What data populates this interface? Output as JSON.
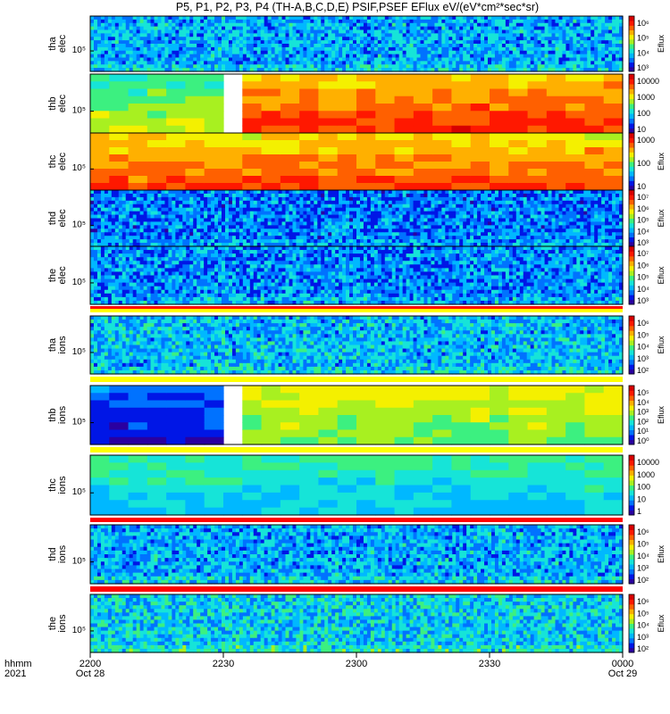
{
  "title": "P5, P1, P2, P3, P4 (TH-A,B,C,D,E) PSIF,PSEF EFlux eV/(eV*cm²*sec*sr)",
  "x_axis": {
    "row_labels": [
      "hhmm",
      "2021"
    ],
    "ticks": [
      {
        "time": "2200",
        "date": "Oct 28"
      },
      {
        "time": "2230",
        "date": ""
      },
      {
        "time": "2300",
        "date": ""
      },
      {
        "time": "2330",
        "date": ""
      },
      {
        "time": "0000",
        "date": "Oct 29"
      }
    ]
  },
  "colors": {
    "colormap": [
      "#2a00a0",
      "#0016e6",
      "#0072ff",
      "#00b8ff",
      "#16e4d8",
      "#3cf080",
      "#a8f020",
      "#f4f000",
      "#ffb000",
      "#ff6000",
      "#ff1800",
      "#d80000"
    ],
    "separator_yellow": "#ffff00",
    "separator_red": "#ff0000"
  },
  "chart_data": [
    {
      "type": "heatmap",
      "probe": "tha",
      "species": "elec",
      "ylabel": [
        "tha",
        "elec"
      ],
      "y_tick": "10⁵",
      "colorbar_label": "Eflux",
      "colorbar_ticks": [
        "10⁶",
        "10⁵",
        "10⁴",
        "10³"
      ],
      "intensity_level": 0.28,
      "gap": null
    },
    {
      "type": "heatmap",
      "probe": "thb",
      "species": "elec",
      "ylabel": [
        "thb",
        "elec"
      ],
      "y_tick": "10⁵",
      "colorbar_label": "",
      "colorbar_ticks": [
        "10000",
        "1000",
        "100",
        "10"
      ],
      "intensity_level": 0.78,
      "gap": [
        "2229",
        "2236"
      ],
      "pre_gap_level": 0.5
    },
    {
      "type": "heatmap",
      "probe": "thc",
      "species": "elec",
      "ylabel": [
        "thc",
        "elec"
      ],
      "y_tick": "10⁵",
      "colorbar_label": "Eflux",
      "colorbar_ticks": [
        "1000",
        "100",
        "10"
      ],
      "intensity_level": 0.75,
      "gap": null
    },
    {
      "type": "heatmap",
      "probe": "thd",
      "species": "elec",
      "ylabel": [
        "thd",
        "elec"
      ],
      "y_tick": "10⁵",
      "colorbar_label": "Eflux",
      "colorbar_ticks": [
        "10⁷",
        "10⁶",
        "10⁵",
        "10⁴",
        "10³"
      ],
      "intensity_level": 0.22,
      "gap": null
    },
    {
      "type": "heatmap",
      "probe": "the",
      "species": "elec",
      "ylabel": [
        "the",
        "elec"
      ],
      "y_tick": "10⁵",
      "colorbar_label": "Eflux",
      "colorbar_ticks": [
        "10⁷",
        "10⁶",
        "10⁵",
        "10⁴",
        "10³"
      ],
      "intensity_level": 0.24,
      "gap": null
    },
    {
      "type": "heatmap",
      "probe": "tha",
      "species": "ions",
      "ylabel": [
        "tha",
        "ions"
      ],
      "y_tick": "10⁵",
      "colorbar_label": "Eflux",
      "colorbar_ticks": [
        "10⁶",
        "10⁵",
        "10⁴",
        "10³",
        "10²"
      ],
      "intensity_level": 0.3,
      "gap": null
    },
    {
      "type": "heatmap",
      "probe": "thb",
      "species": "ions",
      "ylabel": [
        "thb",
        "ions"
      ],
      "y_tick": "10⁵",
      "colorbar_label": "Eflux",
      "colorbar_ticks": [
        "10⁵",
        "10⁴",
        "10³",
        "10²",
        "10¹",
        "10⁰"
      ],
      "intensity_level": 0.55,
      "gap": [
        "2229",
        "2236"
      ],
      "pre_gap_level": 0.15
    },
    {
      "type": "heatmap",
      "probe": "thc",
      "species": "ions",
      "ylabel": [
        "thc",
        "ions"
      ],
      "y_tick": "10⁵",
      "colorbar_label": "",
      "colorbar_ticks": [
        "10000",
        "1000",
        "100",
        "10",
        "1"
      ],
      "intensity_level": 0.36,
      "gap": null
    },
    {
      "type": "heatmap",
      "probe": "thd",
      "species": "ions",
      "ylabel": [
        "thd",
        "ions"
      ],
      "y_tick": "10⁵",
      "colorbar_label": "Eflux",
      "colorbar_ticks": [
        "10⁶",
        "10⁵",
        "10⁴",
        "10³",
        "10²"
      ],
      "intensity_level": 0.28,
      "gap": null
    },
    {
      "type": "heatmap",
      "probe": "the",
      "species": "ions",
      "ylabel": [
        "the",
        "ions"
      ],
      "y_tick": "10⁵",
      "colorbar_label": "Eflux",
      "colorbar_ticks": [
        "10⁶",
        "10⁵",
        "10⁴",
        "10³",
        "10²"
      ],
      "intensity_level": 0.33,
      "gap": null
    }
  ]
}
